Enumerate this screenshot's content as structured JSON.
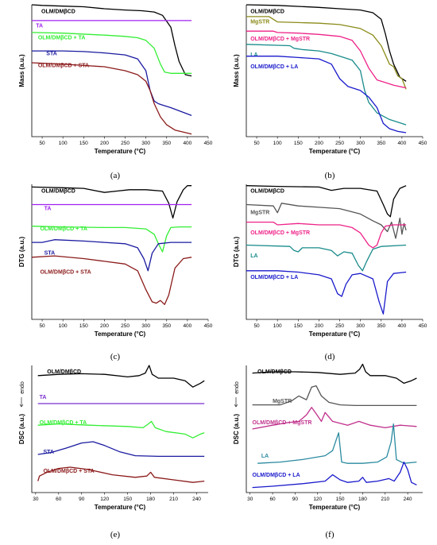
{
  "chart_data": [
    {
      "panel_label": "(a)",
      "type": "line",
      "xlabel": "Temperature (°C)",
      "ylabel": "Mass (a.u.)",
      "xlim": [
        25,
        450
      ],
      "xticks": [
        50,
        100,
        150,
        200,
        250,
        300,
        350,
        400,
        450
      ],
      "ylim": [
        0,
        10
      ],
      "grid": false,
      "series": [
        {
          "name": "OLM/DMβCD",
          "color": "#000000",
          "x": [
            25,
            50,
            100,
            150,
            200,
            250,
            290,
            320,
            340,
            360,
            370,
            380,
            395,
            410
          ],
          "y": [
            10,
            9.95,
            9.9,
            9.85,
            9.7,
            9.6,
            9.55,
            9.45,
            9.2,
            8.3,
            6.9,
            5.7,
            4.7,
            4.6
          ]
        },
        {
          "name": "TA",
          "color": "#a020f0",
          "x": [
            25,
            410
          ],
          "y": [
            8.8,
            8.8
          ]
        },
        {
          "name": "OLM/DMβCD + TA",
          "color": "#33ee33",
          "x": [
            25,
            100,
            200,
            250,
            280,
            300,
            320,
            335,
            345,
            360,
            410
          ],
          "y": [
            7.9,
            7.85,
            7.7,
            7.6,
            7.5,
            7.3,
            6.7,
            5.5,
            4.9,
            4.8,
            4.8
          ]
        },
        {
          "name": "STA",
          "color": "#1a1aa0",
          "x": [
            25,
            100,
            150,
            200,
            250,
            280,
            300,
            310,
            320,
            330,
            340,
            360,
            410
          ],
          "y": [
            6.5,
            6.5,
            6.45,
            6.35,
            6.2,
            5.9,
            5.0,
            3.5,
            2.7,
            2.5,
            2.4,
            2.2,
            1.6
          ]
        },
        {
          "name": "OLM/DMβCD + STA",
          "color": "#8b1a1a",
          "x": [
            25,
            100,
            150,
            200,
            250,
            280,
            300,
            310,
            320,
            335,
            350,
            370,
            410
          ],
          "y": [
            5.6,
            5.5,
            5.4,
            5.3,
            5.0,
            4.7,
            4.2,
            3.5,
            2.5,
            1.5,
            0.9,
            0.5,
            0.2
          ]
        }
      ]
    },
    {
      "panel_label": "(b)",
      "type": "line",
      "xlabel": "Temperature (°C)",
      "ylabel": "Mass (a.u.)",
      "xlim": [
        25,
        450
      ],
      "xticks": [
        50,
        100,
        150,
        200,
        250,
        300,
        350,
        400,
        450
      ],
      "ylim": [
        0,
        10
      ],
      "grid": false,
      "series": [
        {
          "name": "OLM/DMβCD",
          "color": "#000000",
          "x": [
            25,
            100,
            200,
            250,
            300,
            330,
            350,
            360,
            370,
            380,
            395,
            410
          ],
          "y": [
            10,
            9.95,
            9.8,
            9.7,
            9.6,
            9.4,
            8.9,
            7.8,
            6.5,
            5.5,
            4.5,
            4.2
          ]
        },
        {
          "name": "MgSTR",
          "color": "#8b8b1a",
          "x": [
            25,
            80,
            90,
            100,
            150,
            200,
            250,
            300,
            330,
            350,
            370,
            380,
            390,
            400,
            410
          ],
          "y": [
            9.1,
            9.1,
            8.9,
            8.7,
            8.65,
            8.6,
            8.5,
            8.2,
            7.7,
            6.9,
            5.5,
            5.3,
            4.6,
            4.4,
            3.6
          ]
        },
        {
          "name": "OLM/DMβCD + MgSTR",
          "color": "#ee2288",
          "x": [
            25,
            90,
            100,
            150,
            200,
            250,
            280,
            300,
            320,
            340,
            360,
            380,
            410
          ],
          "y": [
            8.0,
            8.0,
            7.9,
            7.85,
            7.75,
            7.6,
            7.3,
            6.5,
            5.2,
            4.3,
            4.1,
            3.9,
            3.7
          ]
        },
        {
          "name": "LA",
          "color": "#1a8b8b",
          "x": [
            25,
            130,
            140,
            160,
            200,
            230,
            260,
            280,
            300,
            310,
            320,
            340,
            370,
            410
          ],
          "y": [
            7.0,
            6.9,
            6.7,
            6.6,
            6.5,
            6.3,
            6.0,
            5.8,
            5.0,
            3.5,
            2.6,
            1.8,
            1.3,
            0.9
          ]
        },
        {
          "name": "OLM/DMβCD + LA",
          "color": "#1a1acc",
          "x": [
            25,
            100,
            150,
            200,
            230,
            250,
            270,
            300,
            320,
            340,
            355,
            370,
            390,
            410
          ],
          "y": [
            6.1,
            6.1,
            6.0,
            5.9,
            5.5,
            4.4,
            3.8,
            3.5,
            3.0,
            2.2,
            1.0,
            0.6,
            0.4,
            0.3
          ]
        }
      ]
    },
    {
      "panel_label": "(c)",
      "type": "line",
      "xlabel": "Temperature (°C)",
      "ylabel": "DTG (a.u.)",
      "xlim": [
        25,
        450
      ],
      "xticks": [
        50,
        100,
        150,
        200,
        250,
        300,
        350,
        400,
        450
      ],
      "ylim": [
        0,
        10
      ],
      "grid": false,
      "series": [
        {
          "name": "OLM/DMβCD",
          "color": "#000000",
          "x": [
            25,
            100,
            150,
            200,
            230,
            260,
            300,
            340,
            355,
            365,
            375,
            390,
            400,
            410
          ],
          "y": [
            9.8,
            9.75,
            9.7,
            9.4,
            9.5,
            9.6,
            9.6,
            9.5,
            8.6,
            7.5,
            8.7,
            9.6,
            9.9,
            9.9
          ]
        },
        {
          "name": "TA",
          "color": "#a020f0",
          "x": [
            25,
            410
          ],
          "y": [
            8.5,
            8.5
          ]
        },
        {
          "name": "OLM/DMβCD + TA",
          "color": "#33ee33",
          "x": [
            25,
            100,
            200,
            250,
            300,
            320,
            330,
            340,
            350,
            360,
            380,
            410
          ],
          "y": [
            6.9,
            6.85,
            6.8,
            6.8,
            6.7,
            6.3,
            5.6,
            5.0,
            6.2,
            6.8,
            6.85,
            6.85
          ]
        },
        {
          "name": "STA",
          "color": "#1a1aa0",
          "x": [
            25,
            50,
            80,
            150,
            200,
            250,
            280,
            295,
            305,
            315,
            330,
            360,
            410
          ],
          "y": [
            5.7,
            5.7,
            5.9,
            5.8,
            5.7,
            5.6,
            5.3,
            4.5,
            3.6,
            4.9,
            5.6,
            5.7,
            5.7
          ]
        },
        {
          "name": "OLM/DMβCD + STA",
          "color": "#8b1a1a",
          "x": [
            25,
            80,
            150,
            200,
            250,
            280,
            300,
            315,
            325,
            335,
            345,
            355,
            370,
            390,
            410
          ],
          "y": [
            4.6,
            4.7,
            4.5,
            4.3,
            4.1,
            3.6,
            2.2,
            1.3,
            1.2,
            1.4,
            1.1,
            1.8,
            3.8,
            4.5,
            4.6
          ]
        }
      ]
    },
    {
      "panel_label": "(d)",
      "type": "line",
      "xlabel": "Temperature (°C)",
      "ylabel": "DTG (a.u.)",
      "xlim": [
        25,
        450
      ],
      "xticks": [
        50,
        100,
        150,
        200,
        250,
        300,
        350,
        400,
        450
      ],
      "ylim": [
        0,
        10
      ],
      "grid": false,
      "series": [
        {
          "name": "OLM/DMβCD",
          "color": "#000000",
          "x": [
            25,
            100,
            200,
            230,
            260,
            300,
            340,
            355,
            365,
            372,
            380,
            395,
            410
          ],
          "y": [
            9.9,
            9.85,
            9.8,
            9.55,
            9.7,
            9.7,
            9.5,
            8.5,
            7.8,
            7.6,
            8.9,
            9.7,
            9.9
          ]
        },
        {
          "name": "MgSTR",
          "color": "#555555",
          "x": [
            25,
            90,
            100,
            110,
            150,
            200,
            250,
            300,
            330,
            350,
            365,
            375,
            385,
            395,
            400,
            405,
            410
          ],
          "y": [
            8.5,
            8.4,
            7.9,
            8.6,
            8.4,
            8.3,
            8.2,
            7.8,
            7.3,
            7.0,
            6.5,
            7.2,
            6.0,
            7.5,
            6.3,
            7.1,
            6.6
          ]
        },
        {
          "name": "OLM/DMβCD + MgSTR",
          "color": "#ee2288",
          "x": [
            25,
            90,
            100,
            150,
            200,
            250,
            280,
            300,
            320,
            330,
            340,
            350,
            360,
            380,
            410
          ],
          "y": [
            7.2,
            7.2,
            7.0,
            7.1,
            7.0,
            7.0,
            6.8,
            6.4,
            5.5,
            5.3,
            5.5,
            6.4,
            6.9,
            7.0,
            7.0
          ]
        },
        {
          "name": "LA",
          "color": "#1a8b8b",
          "x": [
            25,
            130,
            140,
            150,
            160,
            200,
            230,
            245,
            260,
            280,
            295,
            305,
            315,
            330,
            350,
            410
          ],
          "y": [
            5.5,
            5.4,
            5.1,
            5.0,
            5.3,
            5.3,
            5.1,
            4.7,
            5.0,
            4.9,
            4.0,
            3.6,
            4.3,
            5.2,
            5.4,
            5.5
          ]
        },
        {
          "name": "OLM/DMβCD + LA",
          "color": "#1a1acc",
          "x": [
            25,
            100,
            150,
            200,
            230,
            245,
            255,
            265,
            280,
            300,
            330,
            345,
            355,
            365,
            380,
            410
          ],
          "y": [
            3.6,
            3.6,
            3.5,
            3.3,
            3.0,
            1.9,
            1.7,
            2.6,
            3.3,
            3.4,
            3.0,
            1.3,
            0.4,
            2.8,
            3.4,
            3.5
          ]
        }
      ]
    },
    {
      "panel_label": "(e)",
      "type": "line",
      "xlabel": "Temperature (°C)",
      "ylabel": "DSC (a.u.)",
      "endo_label": "endo",
      "xlim": [
        25,
        255
      ],
      "xticks": [
        30,
        60,
        90,
        120,
        150,
        180,
        210,
        240
      ],
      "ylim": [
        0,
        10
      ],
      "grid": false,
      "series": [
        {
          "name": "OLM/DMβCD",
          "color": "#000000",
          "x": [
            33,
            60,
            90,
            120,
            150,
            165,
            173,
            178,
            182,
            190,
            210,
            225,
            235,
            245,
            250
          ],
          "y": [
            9.2,
            9.3,
            9.35,
            9.3,
            9.1,
            9.2,
            9.4,
            10.0,
            9.3,
            9.0,
            9.0,
            8.8,
            8.3,
            8.6,
            8.8
          ]
        },
        {
          "name": "TA",
          "color": "#7b2fd0",
          "x": [
            33,
            250
          ],
          "y": [
            7.0,
            7.0
          ]
        },
        {
          "name": "OLM/DMβCD + TA",
          "color": "#33ee33",
          "x": [
            33,
            60,
            100,
            150,
            170,
            177,
            181,
            186,
            200,
            225,
            235,
            245,
            250
          ],
          "y": [
            5.3,
            5.4,
            5.3,
            5.2,
            5.1,
            5.4,
            5.6,
            5.1,
            4.8,
            4.6,
            4.3,
            4.6,
            4.7
          ]
        },
        {
          "name": "STA",
          "color": "#1a1aa0",
          "x": [
            33,
            50,
            70,
            90,
            105,
            120,
            140,
            160,
            190,
            220,
            250
          ],
          "y": [
            3.0,
            3.15,
            3.5,
            3.9,
            4.0,
            3.7,
            3.2,
            2.9,
            2.85,
            2.85,
            2.85
          ]
        },
        {
          "name": "OLM/DMβCD + STA",
          "color": "#8b1a1a",
          "x": [
            33,
            35,
            45,
            60,
            75,
            100,
            130,
            160,
            175,
            180,
            185,
            210,
            235,
            250
          ],
          "y": [
            0.9,
            1.3,
            1.6,
            1.9,
            2.0,
            1.8,
            1.4,
            1.2,
            1.3,
            1.6,
            1.2,
            1.0,
            0.8,
            0.9
          ]
        }
      ]
    },
    {
      "panel_label": "(f)",
      "type": "line",
      "xlabel": "Temperature (°C)",
      "ylabel": "DSC (a.u.)",
      "endo_label": "endo",
      "xlim": [
        25,
        260
      ],
      "xticks": [
        30,
        60,
        90,
        120,
        150,
        180,
        210,
        240
      ],
      "ylim": [
        0,
        10
      ],
      "grid": false,
      "series": [
        {
          "name": "OLM/DMβCD",
          "color": "#000000",
          "x": [
            33,
            60,
            90,
            120,
            150,
            170,
            176,
            180,
            184,
            190,
            210,
            225,
            235,
            245,
            252
          ],
          "y": [
            9.4,
            9.5,
            9.5,
            9.45,
            9.3,
            9.4,
            9.7,
            10.1,
            9.5,
            9.2,
            9.2,
            9.0,
            8.6,
            8.8,
            9.0
          ]
        },
        {
          "name": "MgSTR",
          "color": "#555555",
          "x": [
            33,
            70,
            85,
            95,
            105,
            112,
            118,
            125,
            135,
            150,
            170,
            200,
            252
          ],
          "y": [
            6.9,
            6.9,
            7.2,
            7.6,
            7.3,
            8.3,
            8.4,
            7.6,
            7.1,
            6.9,
            6.85,
            6.85,
            6.85
          ]
        },
        {
          "name": "OLM/DMβCD + MgSTR",
          "color": "#c0308c",
          "x": [
            33,
            60,
            80,
            95,
            105,
            112,
            118,
            125,
            130,
            140,
            160,
            175,
            190,
            210,
            230,
            252
          ],
          "y": [
            5.0,
            5.3,
            5.5,
            5.6,
            6.1,
            6.7,
            6.2,
            5.6,
            6.3,
            5.6,
            5.3,
            5.6,
            5.3,
            5.1,
            5.3,
            5.2
          ]
        },
        {
          "name": "LA",
          "color": "#2a8aa0",
          "x": [
            40,
            70,
            100,
            130,
            140,
            145,
            148,
            152,
            160,
            180,
            200,
            212,
            218,
            221,
            225,
            235,
            252
          ],
          "y": [
            2.3,
            2.4,
            2.6,
            2.9,
            3.3,
            4.2,
            4.7,
            2.4,
            2.3,
            2.3,
            2.4,
            2.8,
            4.0,
            5.4,
            2.6,
            2.3,
            2.4
          ]
        },
        {
          "name": "OLM/DMβCD + LA",
          "color": "#1a1acc",
          "x": [
            33,
            60,
            100,
            130,
            140,
            150,
            160,
            175,
            180,
            185,
            200,
            215,
            222,
            230,
            235,
            240,
            245,
            252
          ],
          "y": [
            0.4,
            0.5,
            0.7,
            0.9,
            1.4,
            1.0,
            0.8,
            0.9,
            1.2,
            0.8,
            0.9,
            1.1,
            0.9,
            1.6,
            2.4,
            1.8,
            0.8,
            0.6
          ]
        }
      ]
    }
  ]
}
